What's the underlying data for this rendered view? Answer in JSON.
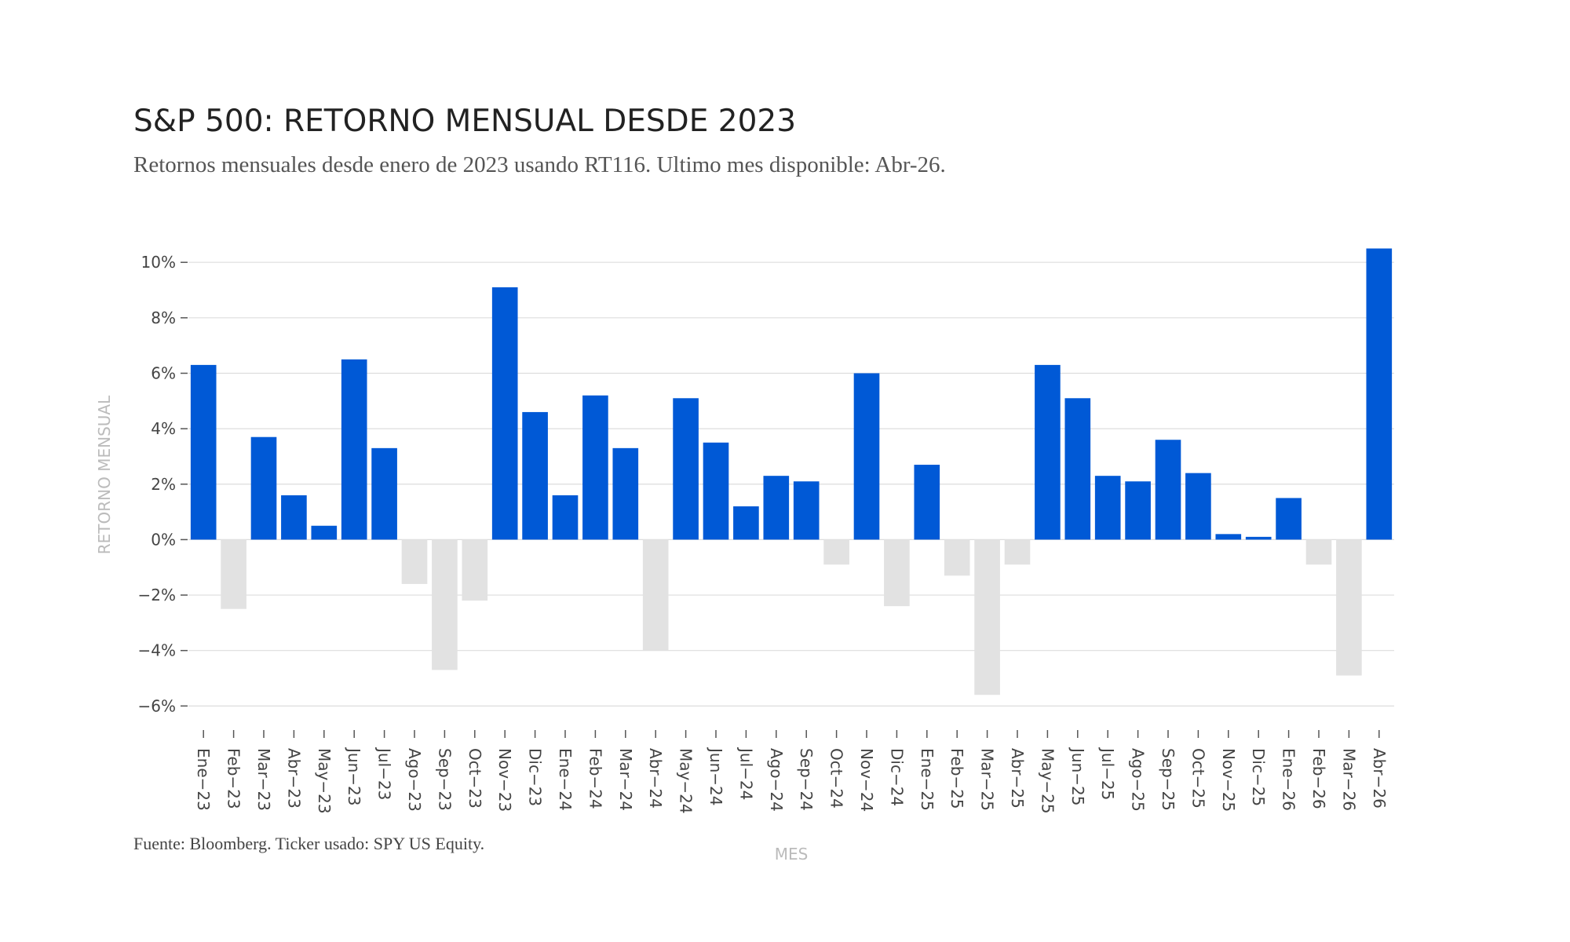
{
  "chart_data": {
    "type": "bar",
    "title": "S&P 500: RETORNO MENSUAL DESDE 2023",
    "subtitle": "Retornos mensuales desde enero de 2023 usando RT116. Ultimo mes disponible: Abr-26.",
    "source": "Fuente: Bloomberg. Ticker usado: SPY US Equity.",
    "xlabel": "MES",
    "ylabel": "RETORNO MENSUAL",
    "ylim": [
      -6.5,
      10.6
    ],
    "yticks": [
      10,
      8,
      6,
      4,
      2,
      0,
      -2,
      -4,
      -6
    ],
    "ytick_labels": [
      "10%",
      "8%",
      "6%",
      "4%",
      "2%",
      "0%",
      "−2%",
      "−4%",
      "−6%"
    ],
    "grid": true,
    "legend": "none",
    "colors": {
      "positive": "#0059D6",
      "negative": "#E2E2E2",
      "grid": "#DDDDDD"
    },
    "categories": [
      "Ene−23",
      "Feb−23",
      "Mar−23",
      "Abr−23",
      "May−23",
      "Jun−23",
      "Jul−23",
      "Ago−23",
      "Sep−23",
      "Oct−23",
      "Nov−23",
      "Dic−23",
      "Ene−24",
      "Feb−24",
      "Mar−24",
      "Abr−24",
      "May−24",
      "Jun−24",
      "Jul−24",
      "Ago−24",
      "Sep−24",
      "Oct−24",
      "Nov−24",
      "Dic−24",
      "Ene−25",
      "Feb−25",
      "Mar−25",
      "Abr−25",
      "May−25",
      "Jun−25",
      "Jul−25",
      "Ago−25",
      "Sep−25",
      "Oct−25",
      "Nov−25",
      "Dic−25",
      "Ene−26",
      "Feb−26",
      "Mar−26",
      "Abr−26"
    ],
    "values": [
      6.3,
      -2.5,
      3.7,
      1.6,
      0.5,
      6.5,
      3.3,
      -1.6,
      -4.7,
      -2.2,
      9.1,
      4.6,
      1.6,
      5.2,
      3.3,
      -4.0,
      5.1,
      3.5,
      1.2,
      2.3,
      2.1,
      -0.9,
      6.0,
      -2.4,
      2.7,
      -1.3,
      -5.6,
      -0.9,
      6.3,
      5.1,
      2.3,
      2.1,
      3.6,
      2.4,
      0.2,
      0.1,
      1.5,
      -0.9,
      -4.9,
      10.5
    ]
  }
}
